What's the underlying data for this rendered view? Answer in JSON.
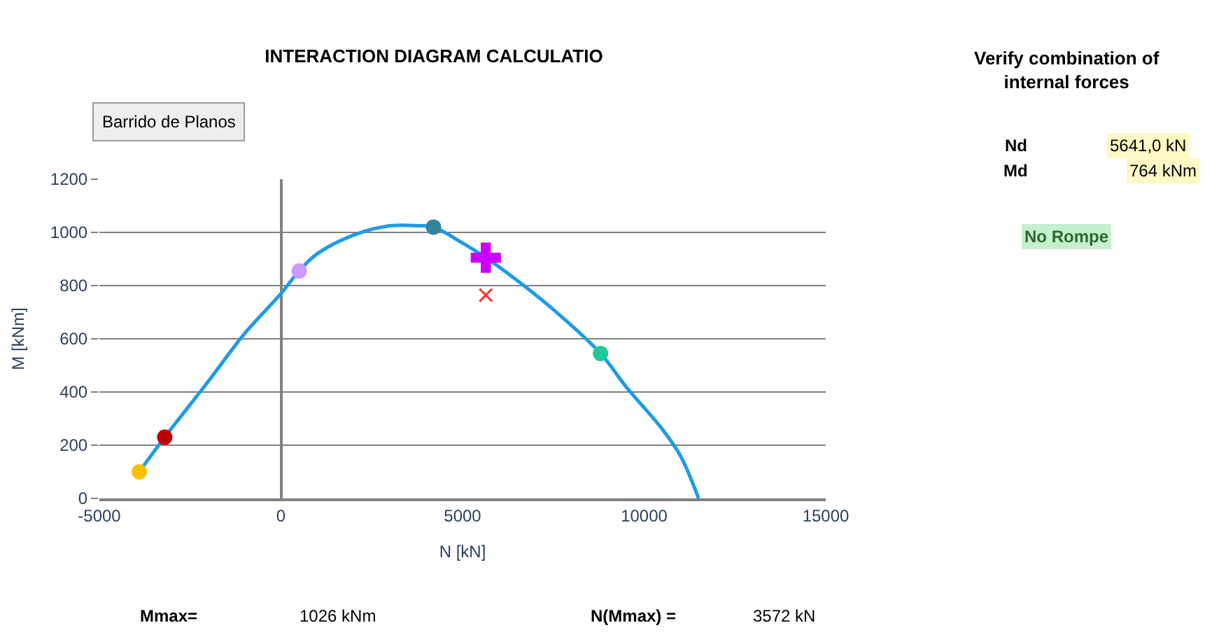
{
  "chart_data": {
    "type": "line",
    "title": "INTERACTION DIAGRAM CALCULATIO",
    "xlabel": "N [kN]",
    "ylabel": "M [kNm]",
    "xlim": [
      -5000,
      15000
    ],
    "xticks": [
      -5000,
      0,
      5000,
      10000,
      15000
    ],
    "ylim": [
      0,
      1200
    ],
    "yticks": [
      0,
      200,
      400,
      600,
      800,
      1000,
      1200
    ],
    "grid": "y",
    "legend": false,
    "series": [
      {
        "color": "#1e9be6",
        "marker": "none",
        "x": [
          -3900,
          -3200,
          -2000,
          -1000,
          0,
          500,
          1000,
          2000,
          3000,
          3800,
          4200,
          5000,
          5641,
          6500,
          7500,
          8800,
          9500,
          10500,
          11000,
          11500
        ],
        "values": [
          100,
          230,
          440,
          620,
          770,
          855,
          920,
          990,
          1025,
          1025,
          1020,
          960,
          905,
          820,
          710,
          545,
          420,
          260,
          160,
          0
        ]
      },
      {
        "type": "scatter",
        "marker": "circle",
        "colors": [
          "#ffc000",
          "#c00000",
          "#cc99ff",
          "#31849b",
          "#20c997"
        ],
        "x": [
          -3900,
          -3200,
          500,
          4200,
          8800
        ],
        "values": [
          100,
          230,
          855,
          1020,
          545
        ]
      },
      {
        "type": "scatter",
        "marker": "cross",
        "color": "#cc00ff",
        "x": [
          5641
        ],
        "values": [
          905
        ]
      },
      {
        "type": "scatter",
        "marker": "x",
        "color": "#ff3333",
        "x": [
          5641
        ],
        "values": [
          764
        ]
      }
    ],
    "annotations": [
      "Barrido de Planos",
      "Mmax=",
      "1026 kNm",
      "N(Mmax) =",
      "3572 kN",
      "Verify combination of internal forces",
      "Nd",
      "5641,0 kN",
      "Md",
      "764 kNm",
      "No Rompe"
    ]
  }
}
